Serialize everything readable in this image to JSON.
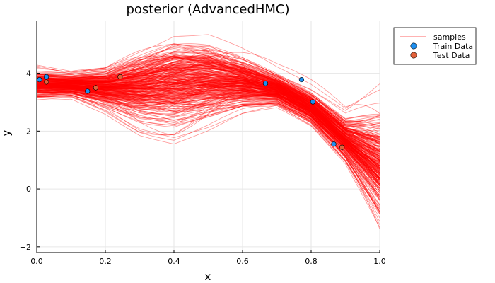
{
  "chart_data": {
    "type": "line",
    "title": "posterior (AdvancedHMC)",
    "xlabel": "x",
    "ylabel": "y",
    "xlim": [
      0,
      1
    ],
    "ylim": [
      -2.2,
      5.8
    ],
    "x_ticks": [
      0.0,
      0.2,
      0.4,
      0.6,
      0.8,
      1.0
    ],
    "x_tick_labels": [
      "0.0",
      "0.2",
      "0.4",
      "0.6",
      "0.8",
      "1.0"
    ],
    "y_ticks": [
      -2,
      0,
      2,
      4
    ],
    "y_tick_labels": [
      "−2",
      "0",
      "2",
      "4"
    ],
    "grid": true,
    "legend_position": "top-right (outside)",
    "series": [
      {
        "name": "samples",
        "kind": "line-ensemble",
        "color": "#ff0000",
        "mean_curve": {
          "x": [
            0.0,
            0.1,
            0.2,
            0.3,
            0.4,
            0.5,
            0.6,
            0.7,
            0.8,
            0.9,
            1.0
          ],
          "y": [
            3.6,
            3.6,
            3.5,
            3.55,
            3.7,
            3.8,
            3.7,
            3.45,
            2.8,
            1.7,
            0.8
          ]
        },
        "spread_y": [
          0.25,
          0.2,
          0.35,
          0.65,
          0.85,
          0.75,
          0.5,
          0.3,
          0.3,
          0.4,
          1.0
        ]
      },
      {
        "name": "Train Data",
        "kind": "scatter",
        "color": "#1f8fef",
        "points": [
          [
            0.008,
            3.78
          ],
          [
            0.028,
            3.88
          ],
          [
            0.148,
            3.38
          ],
          [
            0.667,
            3.65
          ],
          [
            0.772,
            3.78
          ],
          [
            0.805,
            3.01
          ],
          [
            0.866,
            1.55
          ]
        ]
      },
      {
        "name": "Test Data",
        "kind": "scatter",
        "color": "#e2623b",
        "points": [
          [
            0.028,
            3.7
          ],
          [
            0.172,
            3.5
          ],
          [
            0.243,
            3.88
          ],
          [
            0.89,
            1.44
          ]
        ]
      }
    ]
  }
}
